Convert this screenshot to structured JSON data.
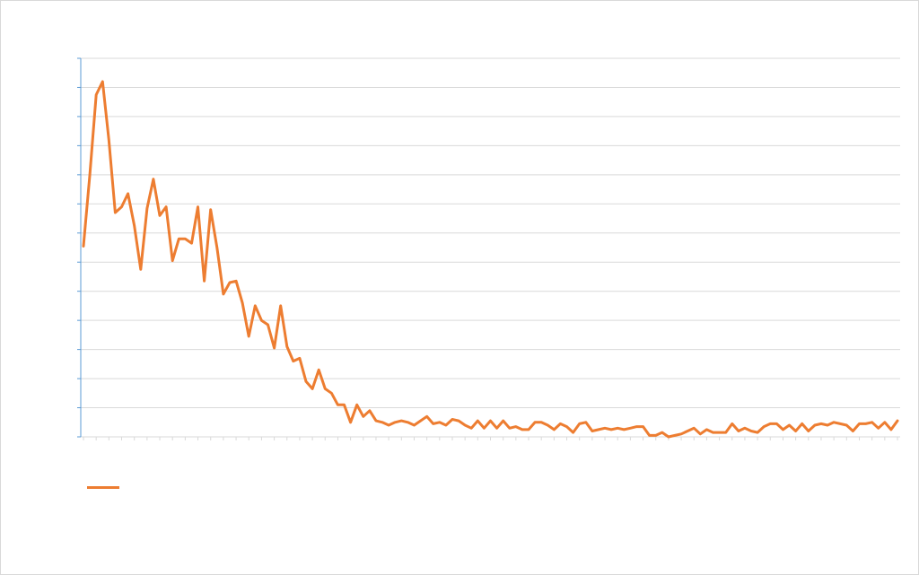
{
  "chart_data": {
    "type": "line",
    "title": "",
    "xlabel": "",
    "ylabel": "",
    "ylim": [
      0,
      26
    ],
    "grid": true,
    "legend": "bottom-left",
    "series": [
      {
        "name": "",
        "color": "#ed7d31",
        "values": [
          13.1,
          18.0,
          23.5,
          24.4,
          20.4,
          15.4,
          15.8,
          16.7,
          14.5,
          11.5,
          15.7,
          17.7,
          15.2,
          15.8,
          12.1,
          13.6,
          13.6,
          13.3,
          15.8,
          10.7,
          15.6,
          13.0,
          9.8,
          10.6,
          10.7,
          9.2,
          6.9,
          9.0,
          8.0,
          7.7,
          6.1,
          9.0,
          6.2,
          5.2,
          5.4,
          3.8,
          3.3,
          4.6,
          3.3,
          3.0,
          2.2,
          2.2,
          1.0,
          2.2,
          1.4,
          1.8,
          1.1,
          1.0,
          0.8,
          1.0,
          1.1,
          1.0,
          0.8,
          1.1,
          1.4,
          0.9,
          1.0,
          0.8,
          1.2,
          1.1,
          0.8,
          0.6,
          1.1,
          0.6,
          1.1,
          0.6,
          1.1,
          0.6,
          0.7,
          0.5,
          0.5,
          1.0,
          1.0,
          0.8,
          0.5,
          0.9,
          0.7,
          0.3,
          0.9,
          1.0,
          0.4,
          0.5,
          0.6,
          0.5,
          0.6,
          0.5,
          0.6,
          0.7,
          0.7,
          0.1,
          0.1,
          0.3,
          0.0,
          0.1,
          0.2,
          0.4,
          0.6,
          0.2,
          0.5,
          0.3,
          0.3,
          0.3,
          0.9,
          0.4,
          0.6,
          0.4,
          0.3,
          0.7,
          0.9,
          0.9,
          0.5,
          0.8,
          0.4,
          0.9,
          0.4,
          0.8,
          0.9,
          0.8,
          1.0,
          0.9,
          0.8,
          0.4,
          0.9,
          0.9,
          1.0,
          0.6,
          1.0,
          0.5,
          1.1
        ]
      }
    ]
  }
}
